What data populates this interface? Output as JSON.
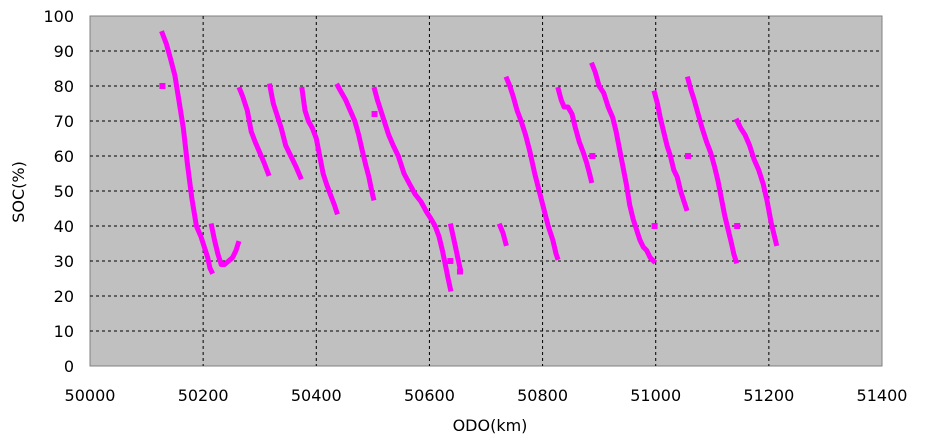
{
  "chart_data": {
    "type": "scatter",
    "title": "",
    "xlabel": "ODO(km)",
    "ylabel": "SOC(%)",
    "xlim": [
      50000,
      51400
    ],
    "ylim": [
      0,
      100
    ],
    "xticks": [
      50000,
      50200,
      50400,
      50600,
      50800,
      51000,
      51200,
      51400
    ],
    "yticks": [
      0,
      10,
      20,
      30,
      40,
      50,
      60,
      70,
      80,
      90,
      100
    ],
    "grid": true,
    "legend": "none",
    "colors": {
      "series": "#ff00ff",
      "plot_bg": "#c0c0c0",
      "grid": "#000000"
    },
    "series": [
      {
        "segments": [
          [
            [
              50128,
              95
            ],
            [
              50135,
              92
            ],
            [
              50142,
              88
            ],
            [
              50150,
              83
            ],
            [
              50158,
              75
            ],
            [
              50165,
              68
            ],
            [
              50172,
              58
            ],
            [
              50180,
              48
            ],
            [
              50188,
              40
            ],
            [
              50196,
              37
            ],
            [
              50202,
              34
            ],
            [
              50208,
              31
            ],
            [
              50212,
              28
            ],
            [
              50215,
              27
            ]
          ],
          [
            [
              50215,
              40
            ],
            [
              50220,
              36
            ],
            [
              50226,
              32
            ],
            [
              50232,
              29
            ],
            [
              50238,
              29
            ],
            [
              50245,
              30
            ],
            [
              50252,
              31
            ],
            [
              50258,
              33
            ],
            [
              50262,
              35
            ]
          ],
          [
            [
              50265,
              79
            ],
            [
              50270,
              77
            ],
            [
              50278,
              73
            ],
            [
              50285,
              67
            ],
            [
              50292,
              64
            ],
            [
              50300,
              61
            ],
            [
              50308,
              58
            ],
            [
              50315,
              55
            ]
          ],
          [
            [
              50318,
              80
            ],
            [
              50324,
              75
            ],
            [
              50330,
              72
            ],
            [
              50338,
              68
            ],
            [
              50346,
              63
            ],
            [
              50355,
              60
            ],
            [
              50364,
              57
            ],
            [
              50372,
              54
            ]
          ],
          [
            [
              50375,
              79
            ],
            [
              50380,
              73
            ],
            [
              50386,
              70
            ],
            [
              50393,
              68
            ],
            [
              50400,
              65
            ],
            [
              50406,
              60
            ],
            [
              50412,
              55
            ],
            [
              50418,
              52
            ],
            [
              50425,
              49
            ],
            [
              50432,
              46
            ],
            [
              50436,
              44
            ]
          ],
          [
            [
              50438,
              80
            ],
            [
              50445,
              78
            ],
            [
              50452,
              76
            ],
            [
              50460,
              73
            ],
            [
              50468,
              70
            ],
            [
              50475,
              66
            ],
            [
              50482,
              61
            ],
            [
              50488,
              57
            ],
            [
              50493,
              54
            ],
            [
              50498,
              50
            ],
            [
              50501,
              48
            ]
          ],
          [
            [
              50503,
              79
            ],
            [
              50508,
              76
            ],
            [
              50514,
              73
            ],
            [
              50520,
              70
            ],
            [
              50528,
              66
            ],
            [
              50536,
              63
            ],
            [
              50545,
              60
            ],
            [
              50555,
              55
            ],
            [
              50565,
              52
            ],
            [
              50575,
              49
            ],
            [
              50585,
              47
            ],
            [
              50595,
              44
            ],
            [
              50603,
              42
            ],
            [
              50610,
              40
            ],
            [
              50617,
              37
            ],
            [
              50623,
              33
            ],
            [
              50628,
              29
            ],
            [
              50633,
              25
            ],
            [
              50637,
              22
            ]
          ],
          [
            [
              50638,
              40
            ],
            [
              50642,
              37
            ],
            [
              50646,
              34
            ],
            [
              50650,
              31
            ],
            [
              50654,
              28
            ]
          ],
          [
            [
              50725,
              40
            ],
            [
              50730,
              38
            ],
            [
              50735,
              35
            ]
          ],
          [
            [
              50737,
              82
            ],
            [
              50742,
              80
            ],
            [
              50748,
              77
            ],
            [
              50755,
              73
            ],
            [
              50762,
              70
            ],
            [
              50770,
              66
            ],
            [
              50778,
              61
            ],
            [
              50786,
              55
            ],
            [
              50794,
              50
            ],
            [
              50802,
              45
            ],
            [
              50810,
              40
            ],
            [
              50818,
              36
            ],
            [
              50824,
              32
            ],
            [
              50826,
              31
            ]
          ],
          [
            [
              50828,
              79
            ],
            [
              50833,
              76
            ],
            [
              50838,
              74
            ],
            [
              50845,
              74
            ],
            [
              50852,
              72
            ],
            [
              50858,
              68
            ],
            [
              50865,
              64
            ],
            [
              50872,
              61
            ],
            [
              50878,
              58
            ],
            [
              50883,
              55
            ],
            [
              50886,
              53
            ]
          ],
          [
            [
              50888,
              86
            ],
            [
              50893,
              84
            ],
            [
              50900,
              80
            ],
            [
              50908,
              78
            ],
            [
              50916,
              74
            ],
            [
              50924,
              71
            ],
            [
              50930,
              67
            ],
            [
              50936,
              62
            ],
            [
              50942,
              57
            ],
            [
              50948,
              52
            ],
            [
              50954,
              46
            ],
            [
              50960,
              42
            ],
            [
              50966,
              39
            ],
            [
              50972,
              36
            ],
            [
              50978,
              34
            ],
            [
              50984,
              33
            ],
            [
              50990,
              31
            ],
            [
              50996,
              30
            ]
          ],
          [
            [
              50998,
              78
            ],
            [
              51003,
              75
            ],
            [
              51008,
              71
            ],
            [
              51014,
              67
            ],
            [
              51020,
              63
            ],
            [
              51026,
              60
            ],
            [
              51032,
              56
            ],
            [
              51038,
              54
            ],
            [
              51044,
              50
            ],
            [
              51050,
              47
            ],
            [
              51054,
              45
            ]
          ],
          [
            [
              51057,
              82
            ],
            [
              51062,
              79
            ],
            [
              51068,
              76
            ],
            [
              51075,
              72
            ],
            [
              51082,
              68
            ],
            [
              51090,
              64
            ],
            [
              51097,
              61
            ],
            [
              51104,
              57
            ],
            [
              51110,
              53
            ],
            [
              51116,
              48
            ],
            [
              51122,
              43
            ],
            [
              51128,
              39
            ],
            [
              51134,
              35
            ],
            [
              51138,
              32
            ],
            [
              51142,
              30
            ]
          ],
          [
            [
              51144,
              70
            ],
            [
              51150,
              68
            ],
            [
              51158,
              66
            ],
            [
              51166,
              63
            ],
            [
              51174,
              59
            ],
            [
              51182,
              56
            ],
            [
              51190,
              52
            ],
            [
              51197,
              47
            ],
            [
              51204,
              41
            ],
            [
              51210,
              37
            ],
            [
              51213,
              35
            ]
          ]
        ],
        "points": [
          [
            50128,
            80
          ],
          [
            50503,
            72
          ],
          [
            50654,
            27
          ],
          [
            50888,
            60
          ],
          [
            50998,
            40
          ],
          [
            51057,
            60
          ],
          [
            51144,
            40
          ],
          [
            50637,
            30
          ]
        ]
      }
    ]
  }
}
